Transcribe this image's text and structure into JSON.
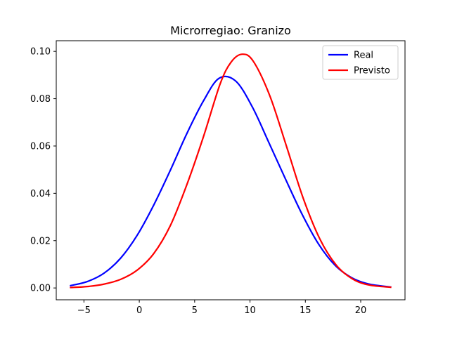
{
  "chart_data": {
    "type": "line",
    "title": "Microrregiao: Granizo",
    "xlabel": "",
    "ylabel": "",
    "xlim": [
      -7.5,
      24.0
    ],
    "ylim": [
      -0.005,
      0.1045
    ],
    "x_ticks": [
      -5,
      0,
      5,
      10,
      15,
      20
    ],
    "x_tick_labels": [
      "−5",
      "0",
      "5",
      "10",
      "15",
      "20"
    ],
    "y_ticks": [
      0.0,
      0.02,
      0.04,
      0.06,
      0.08,
      0.1
    ],
    "y_tick_labels": [
      "0.00",
      "0.02",
      "0.04",
      "0.06",
      "0.08",
      "0.10"
    ],
    "grid": false,
    "legend": "top-right",
    "series": [
      {
        "name": "Real",
        "color": "#0000ff",
        "x": [
          -6.2,
          -4.7,
          -3.2,
          -1.7,
          -0.2,
          1.3,
          2.8,
          4.3,
          5.8,
          7.2,
          8.7,
          10.2,
          11.7,
          13.2,
          14.7,
          16.2,
          17.7,
          19.2,
          20.7,
          22.7
        ],
        "y": [
          0.001,
          0.0027,
          0.0062,
          0.0125,
          0.0222,
          0.035,
          0.0497,
          0.0653,
          0.0791,
          0.0886,
          0.0875,
          0.0766,
          0.0615,
          0.0461,
          0.0312,
          0.0185,
          0.0095,
          0.0043,
          0.0017,
          0.0004
        ]
      },
      {
        "name": "Previsto",
        "color": "#ff0000",
        "x": [
          -6.2,
          -4.7,
          -3.2,
          -1.7,
          -0.2,
          1.3,
          2.8,
          4.3,
          5.8,
          7.3,
          8.3,
          9.3,
          10.3,
          11.8,
          13.3,
          14.8,
          16.3,
          17.8,
          19.3,
          20.8,
          22.7
        ],
        "y": [
          0.0002,
          0.0006,
          0.0016,
          0.0036,
          0.0075,
          0.0145,
          0.0263,
          0.0437,
          0.064,
          0.0862,
          0.0955,
          0.0988,
          0.0958,
          0.0811,
          0.0598,
          0.038,
          0.0208,
          0.0096,
          0.0037,
          0.0012,
          0.0003
        ]
      }
    ]
  }
}
